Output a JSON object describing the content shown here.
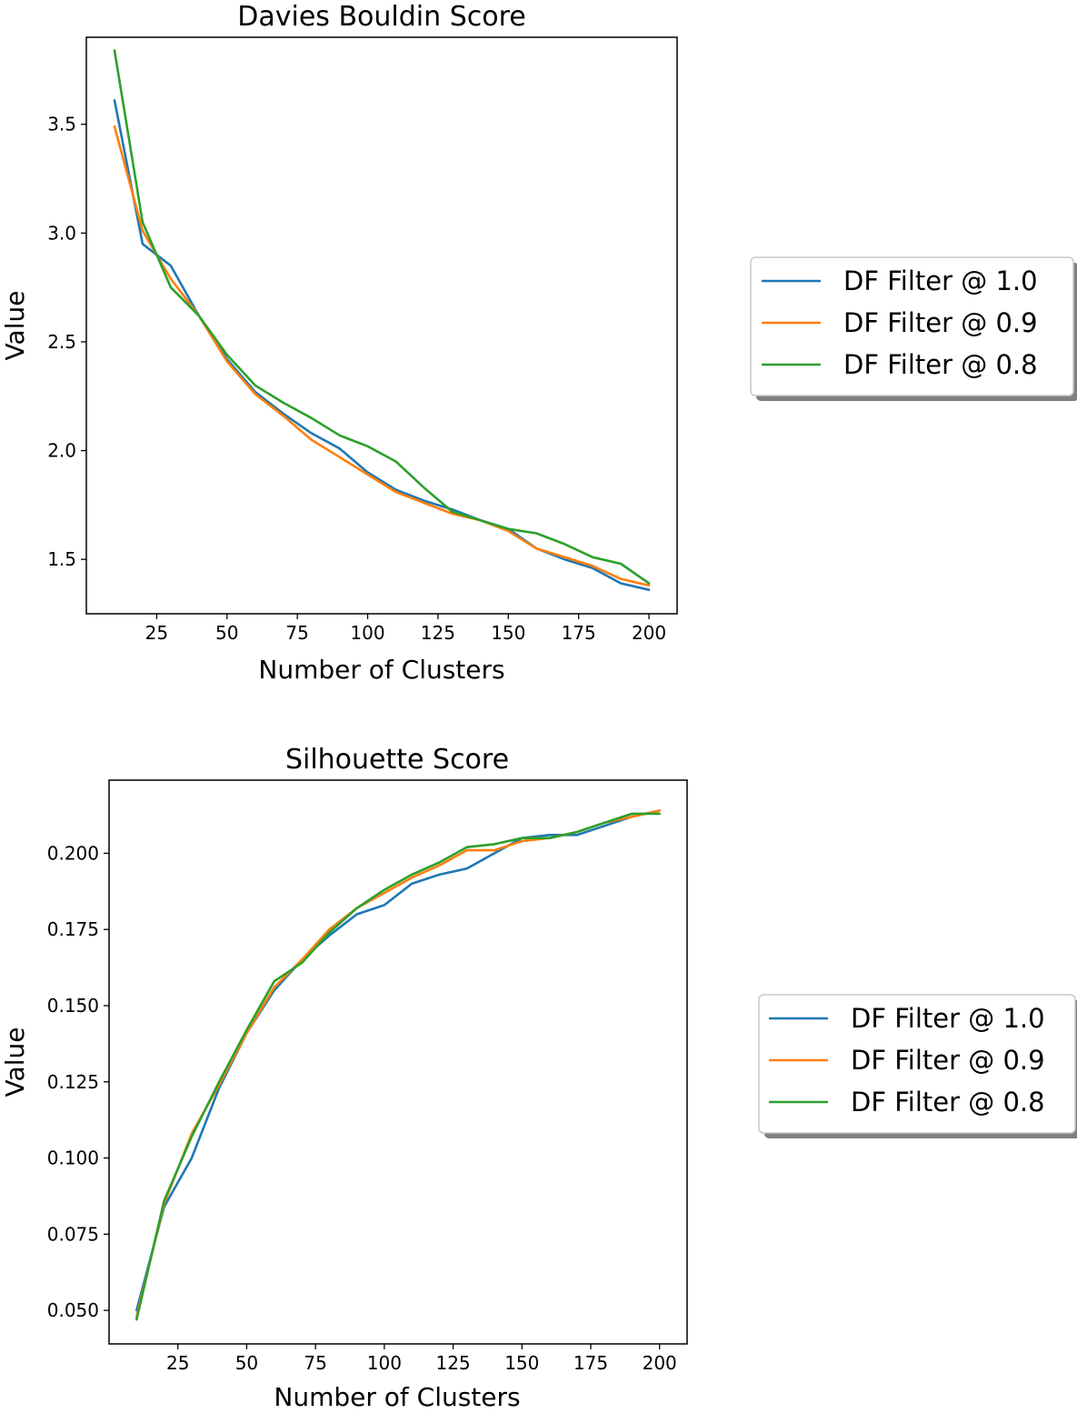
{
  "chart_data": [
    {
      "type": "line",
      "title": "Davies Bouldin Score",
      "xlabel": "Number of Clusters",
      "ylabel": "Value",
      "xlim": [
        0,
        210
      ],
      "ylim": [
        1.25,
        3.9
      ],
      "xticks": [
        25,
        50,
        75,
        100,
        125,
        150,
        175,
        200
      ],
      "xtick_labels": [
        "25",
        "50",
        "75",
        "100",
        "125",
        "150",
        "175",
        "200"
      ],
      "yticks": [
        1.5,
        2.0,
        2.5,
        3.0,
        3.5
      ],
      "ytick_labels": [
        "1.5",
        "2.0",
        "2.5",
        "3.0",
        "3.5"
      ],
      "legend_position": "right",
      "grid": false,
      "x": [
        10,
        20,
        30,
        40,
        50,
        60,
        70,
        80,
        90,
        100,
        110,
        120,
        130,
        140,
        150,
        160,
        170,
        180,
        190,
        200
      ],
      "series": [
        {
          "name": "DF Filter @ 1.0",
          "color": "#1f77b4",
          "values": [
            3.61,
            2.95,
            2.85,
            2.62,
            2.42,
            2.27,
            2.17,
            2.08,
            2.01,
            1.9,
            1.82,
            1.77,
            1.73,
            1.68,
            1.64,
            1.55,
            1.5,
            1.46,
            1.39,
            1.36
          ]
        },
        {
          "name": "DF Filter @ 0.9",
          "color": "#ff7f0e",
          "values": [
            3.49,
            3.01,
            2.79,
            2.62,
            2.41,
            2.26,
            2.16,
            2.05,
            1.97,
            1.89,
            1.81,
            1.76,
            1.71,
            1.68,
            1.63,
            1.55,
            1.51,
            1.47,
            1.41,
            1.38
          ]
        },
        {
          "name": "DF Filter @ 0.8",
          "color": "#2ca02c",
          "values": [
            3.84,
            3.05,
            2.75,
            2.62,
            2.44,
            2.3,
            2.22,
            2.15,
            2.07,
            2.02,
            1.95,
            1.83,
            1.72,
            1.68,
            1.64,
            1.62,
            1.57,
            1.51,
            1.48,
            1.39
          ]
        }
      ]
    },
    {
      "type": "line",
      "title": "Silhouette Score",
      "xlabel": "Number of Clusters",
      "ylabel": "Value",
      "xlim": [
        0,
        210
      ],
      "ylim": [
        0.039,
        0.224
      ],
      "xticks": [
        25,
        50,
        75,
        100,
        125,
        150,
        175,
        200
      ],
      "xtick_labels": [
        "25",
        "50",
        "75",
        "100",
        "125",
        "150",
        "175",
        "200"
      ],
      "yticks": [
        0.05,
        0.075,
        0.1,
        0.125,
        0.15,
        0.175,
        0.2
      ],
      "ytick_labels": [
        "0.050",
        "0.075",
        "0.100",
        "0.125",
        "0.150",
        "0.175",
        "0.200"
      ],
      "legend_position": "right",
      "grid": false,
      "x": [
        10,
        20,
        30,
        40,
        50,
        60,
        70,
        80,
        90,
        100,
        110,
        120,
        130,
        140,
        150,
        160,
        170,
        180,
        190,
        200
      ],
      "series": [
        {
          "name": "DF Filter @ 1.0",
          "color": "#1f77b4",
          "values": [
            0.05,
            0.084,
            0.1,
            0.123,
            0.141,
            0.155,
            0.165,
            0.173,
            0.18,
            0.183,
            0.19,
            0.193,
            0.195,
            0.2,
            0.205,
            0.206,
            0.206,
            0.209,
            0.212,
            0.214
          ]
        },
        {
          "name": "DF Filter @ 0.9",
          "color": "#ff7f0e",
          "values": [
            0.048,
            0.085,
            0.108,
            0.124,
            0.141,
            0.156,
            0.165,
            0.175,
            0.182,
            0.187,
            0.192,
            0.196,
            0.201,
            0.201,
            0.204,
            0.205,
            0.207,
            0.21,
            0.212,
            0.214
          ]
        },
        {
          "name": "DF Filter @ 0.8",
          "color": "#2ca02c",
          "values": [
            0.047,
            0.086,
            0.107,
            0.125,
            0.142,
            0.158,
            0.164,
            0.174,
            0.182,
            0.188,
            0.193,
            0.197,
            0.202,
            0.203,
            0.205,
            0.205,
            0.207,
            0.21,
            0.213,
            0.213
          ]
        }
      ]
    }
  ]
}
